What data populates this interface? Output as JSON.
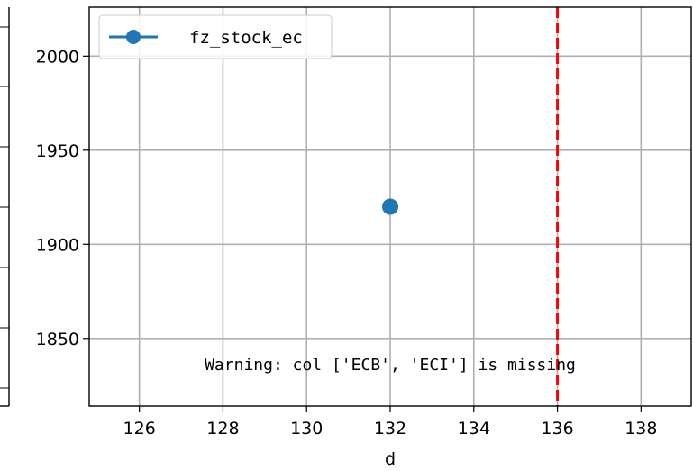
{
  "chart_data": {
    "type": "scatter",
    "xlabel": "d",
    "ylabel": "",
    "xlim": [
      124.8,
      139.2
    ],
    "ylim": [
      1814,
      2026
    ],
    "x_ticks": [
      126,
      128,
      130,
      132,
      134,
      136,
      138
    ],
    "y_ticks": [
      1850,
      1900,
      1950,
      2000
    ],
    "grid": true,
    "legend_position": "top-left",
    "series": [
      {
        "name": "fz_stock_ec",
        "color": "#1f77b4",
        "marker": "circle",
        "points": [
          {
            "x": 132,
            "y": 1920
          }
        ]
      }
    ],
    "vertical_line": {
      "x": 136,
      "color": "#ff0000",
      "style": "dashed"
    },
    "annotation": {
      "text": "Warning: col ['ECB', 'ECI'] is missing",
      "x": 132,
      "y": 1836
    }
  }
}
